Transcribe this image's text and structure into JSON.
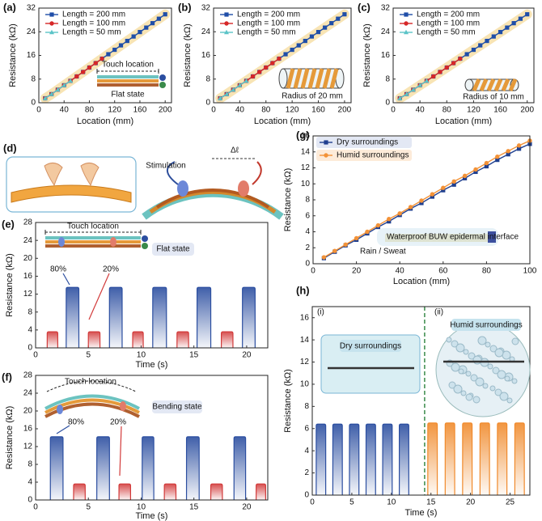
{
  "chart_data": [
    {
      "type": "line",
      "panel": "(a)",
      "xlabel": "Location (mm)",
      "ylabel": "Resistance (kΩ)",
      "xlim": [
        0,
        210
      ],
      "ylim": [
        0,
        32
      ],
      "xticks": [
        0,
        40,
        80,
        120,
        160,
        200
      ],
      "yticks": [
        0,
        8,
        16,
        24,
        32
      ],
      "legend": "upper left",
      "highlight_color": "#f8e4b4",
      "series": [
        {
          "name": "Length = 200 mm",
          "color": "#1f4ea8",
          "marker": "s",
          "x": [
            10,
            20,
            30,
            40,
            50,
            60,
            70,
            80,
            90,
            100,
            110,
            120,
            130,
            140,
            150,
            160,
            170,
            180,
            190,
            200
          ],
          "values": [
            1.5,
            2.9,
            4.4,
            5.9,
            7.4,
            8.9,
            10.4,
            11.9,
            13.4,
            14.9,
            16.4,
            17.9,
            19.4,
            20.9,
            22.4,
            23.9,
            25.4,
            26.9,
            28.4,
            29.9
          ]
        },
        {
          "name": "Length = 100 mm",
          "color": "#d62728",
          "marker": "o",
          "x": [
            10,
            20,
            30,
            40,
            50,
            60,
            70,
            80,
            90,
            100
          ],
          "values": [
            1.5,
            2.9,
            4.4,
            5.9,
            7.4,
            8.9,
            10.4,
            11.9,
            13.4,
            14.9
          ]
        },
        {
          "name": "Length = 50 mm",
          "color": "#5bc4c8",
          "marker": "^",
          "x": [
            10,
            20,
            30,
            40,
            50
          ],
          "values": [
            1.5,
            2.9,
            4.4,
            5.9,
            7.4
          ]
        }
      ],
      "annotations": [
        "Touch location",
        "Flat state"
      ]
    },
    {
      "type": "line",
      "panel": "(b)",
      "xlabel": "Location (mm)",
      "ylabel": "Resistance (kΩ)",
      "xlim": [
        0,
        210
      ],
      "ylim": [
        0,
        32
      ],
      "xticks": [
        0,
        40,
        80,
        120,
        160,
        200
      ],
      "yticks": [
        0,
        8,
        16,
        24,
        32
      ],
      "legend": "upper left",
      "highlight_color": "#f8e4b4",
      "series": [
        {
          "name": "Length = 200 mm",
          "color": "#1f4ea8",
          "marker": "s",
          "x": [
            10,
            20,
            30,
            40,
            50,
            60,
            70,
            80,
            90,
            100,
            110,
            120,
            130,
            140,
            150,
            160,
            170,
            180,
            190,
            200
          ],
          "values": [
            1.5,
            2.9,
            4.4,
            5.9,
            7.4,
            8.9,
            10.4,
            11.9,
            13.4,
            14.9,
            16.4,
            17.9,
            19.4,
            20.9,
            22.4,
            23.9,
            25.4,
            26.9,
            28.4,
            29.9
          ]
        },
        {
          "name": "Length = 100 mm",
          "color": "#d62728",
          "marker": "o",
          "x": [
            10,
            20,
            30,
            40,
            50,
            60,
            70,
            80,
            90,
            100
          ],
          "values": [
            1.5,
            2.9,
            4.4,
            5.9,
            7.4,
            8.9,
            10.4,
            11.9,
            13.4,
            14.9
          ]
        },
        {
          "name": "Length = 50 mm",
          "color": "#5bc4c8",
          "marker": "^",
          "x": [
            10,
            20,
            30,
            40,
            50
          ],
          "values": [
            1.5,
            2.9,
            4.4,
            5.9,
            7.4
          ]
        }
      ],
      "annotations": [
        "Radius of 20 mm"
      ]
    },
    {
      "type": "line",
      "panel": "(c)",
      "xlabel": "Location (mm)",
      "ylabel": "Resistance (kΩ)",
      "xlim": [
        0,
        210
      ],
      "ylim": [
        0,
        32
      ],
      "xticks": [
        0,
        40,
        80,
        120,
        160,
        200
      ],
      "yticks": [
        0,
        8,
        16,
        24,
        32
      ],
      "legend": "upper left",
      "highlight_color": "#f8e4b4",
      "series": [
        {
          "name": "Length = 200 mm",
          "color": "#1f4ea8",
          "marker": "s",
          "x": [
            10,
            20,
            30,
            40,
            50,
            60,
            70,
            80,
            90,
            100,
            110,
            120,
            130,
            140,
            150,
            160,
            170,
            180,
            190,
            200
          ],
          "values": [
            1.5,
            2.9,
            4.4,
            5.9,
            7.4,
            8.9,
            10.4,
            11.9,
            13.4,
            14.9,
            16.4,
            17.9,
            19.4,
            20.9,
            22.4,
            23.9,
            25.4,
            26.9,
            28.4,
            29.9
          ]
        },
        {
          "name": "Length = 100 mm",
          "color": "#d62728",
          "marker": "o",
          "x": [
            10,
            20,
            30,
            40,
            50,
            60,
            70,
            80,
            90,
            100
          ],
          "values": [
            1.5,
            2.9,
            4.4,
            5.9,
            7.4,
            8.9,
            10.4,
            11.9,
            13.4,
            14.9
          ]
        },
        {
          "name": "Length = 50 mm",
          "color": "#5bc4c8",
          "marker": "^",
          "x": [
            10,
            20,
            30,
            40,
            50
          ],
          "values": [
            1.5,
            2.9,
            4.4,
            5.9,
            7.4
          ]
        }
      ],
      "annotations": [
        "Radius of 10 mm"
      ]
    },
    {
      "type": "pulse",
      "panel": "(e)",
      "xlabel": "Time (s)",
      "ylabel": "Resistance (kΩ)",
      "xlim": [
        0,
        22
      ],
      "ylim": [
        0,
        28
      ],
      "xticks": [
        0,
        5,
        10,
        15,
        20
      ],
      "yticks": [
        0,
        4,
        8,
        12,
        16,
        20,
        24,
        28
      ],
      "series": [
        {
          "color": "#d23a3a",
          "starts": [
            1.1,
            5.0,
            9.2,
            13.4,
            17.6
          ],
          "ends": [
            2.1,
            6.1,
            10.2,
            14.5,
            18.7
          ],
          "values": [
            3.6,
            3.6,
            3.6,
            3.6,
            3.6
          ]
        },
        {
          "color": "#2b4ea0",
          "starts": [
            2.9,
            7.0,
            11.1,
            15.3,
            19.6
          ],
          "ends": [
            4.1,
            8.2,
            12.4,
            16.6,
            20.8
          ],
          "values": [
            13.5,
            13.5,
            13.5,
            13.5,
            13.5
          ]
        }
      ],
      "annotations": [
        "Touch location",
        "Flat state",
        "80%",
        "20%"
      ]
    },
    {
      "type": "pulse",
      "panel": "(f)",
      "xlabel": "Time (s)",
      "ylabel": "Resistance (kΩ)",
      "xlim": [
        0,
        22
      ],
      "ylim": [
        0,
        28
      ],
      "xticks": [
        0,
        5,
        10,
        15,
        20
      ],
      "yticks": [
        0,
        4,
        8,
        12,
        16,
        20,
        24,
        28
      ],
      "series": [
        {
          "color": "#d23a3a",
          "starts": [
            3.6,
            7.9,
            12.2,
            16.6,
            20.9
          ],
          "ends": [
            4.7,
            9.0,
            13.3,
            17.7,
            21.8
          ],
          "values": [
            3.6,
            3.6,
            3.6,
            3.6,
            3.6
          ]
        },
        {
          "color": "#2b4ea0",
          "starts": [
            1.4,
            5.8,
            10.1,
            14.3,
            18.8
          ],
          "ends": [
            2.6,
            7.0,
            11.2,
            15.5,
            19.9
          ],
          "values": [
            14.2,
            14.2,
            14.2,
            14.2,
            14.2
          ]
        }
      ],
      "annotations": [
        "Touch location",
        "Bending state",
        "80%",
        "20%"
      ]
    },
    {
      "type": "line",
      "panel": "(g)",
      "xlabel": "Location (mm)",
      "ylabel": "Resistance (kΩ)",
      "xlim": [
        0,
        100
      ],
      "ylim": [
        0,
        16
      ],
      "xticks": [
        0,
        20,
        40,
        60,
        80,
        100
      ],
      "yticks": [
        0,
        2,
        4,
        6,
        8,
        10,
        12,
        14,
        16
      ],
      "legend": "upper left",
      "series": [
        {
          "name": "Dry surroundings",
          "color": "#1f3f8f",
          "marker": "s",
          "x": [
            5,
            10,
            15,
            20,
            25,
            30,
            35,
            40,
            45,
            50,
            55,
            60,
            65,
            70,
            75,
            80,
            85,
            90,
            95,
            100
          ],
          "values": [
            0.7,
            1.5,
            2.3,
            3.0,
            3.8,
            4.6,
            5.3,
            6.1,
            6.9,
            7.6,
            8.4,
            9.2,
            9.9,
            10.7,
            11.5,
            12.2,
            13.0,
            13.7,
            14.4,
            15.0
          ]
        },
        {
          "name": "Humid surroundings",
          "color": "#f39237",
          "marker": "o",
          "x": [
            5,
            10,
            15,
            20,
            25,
            30,
            35,
            40,
            45,
            50,
            55,
            60,
            65,
            70,
            75,
            80,
            85,
            90,
            95,
            100
          ],
          "values": [
            0.8,
            1.6,
            2.4,
            3.2,
            4.0,
            4.8,
            5.6,
            6.3,
            7.1,
            7.9,
            8.7,
            9.5,
            10.3,
            11.0,
            11.8,
            12.6,
            13.4,
            14.1,
            14.8,
            15.4
          ]
        }
      ],
      "annotations": [
        "Waterproof BUW epidermal interface",
        "Rain / Sweat"
      ]
    },
    {
      "type": "pulse",
      "panel": "(h)",
      "xlabel": "Time (s)",
      "ylabel": "Resistance (kΩ)",
      "xlim": [
        0,
        27.5
      ],
      "ylim": [
        0,
        17
      ],
      "xticks": [
        0,
        5,
        10,
        15,
        20,
        25
      ],
      "yticks": [
        0,
        2,
        4,
        6,
        8,
        10,
        12,
        14,
        16
      ],
      "divider": 14.2,
      "series": [
        {
          "color": "#2b4ea0",
          "starts": [
            0.5,
            2.6,
            4.7,
            6.8,
            8.9,
            11.0
          ],
          "ends": [
            1.7,
            3.8,
            5.9,
            8.0,
            10.1,
            12.2
          ],
          "values": [
            6.4,
            6.4,
            6.4,
            6.4,
            6.4,
            6.4
          ]
        },
        {
          "color": "#f08a2c",
          "starts": [
            14.6,
            16.8,
            19.0,
            21.2,
            23.4,
            25.6
          ],
          "ends": [
            15.8,
            18.0,
            20.2,
            22.4,
            24.6,
            26.8
          ],
          "values": [
            6.5,
            6.5,
            6.5,
            6.5,
            6.5,
            6.5
          ]
        }
      ],
      "annotations": [
        "(i)",
        "(ii)",
        "Dry surroundings",
        "Humid surroundings"
      ]
    }
  ],
  "diagram": {
    "label": "(d)",
    "stimulation": "Stimulation",
    "delta": "Δℓ"
  }
}
